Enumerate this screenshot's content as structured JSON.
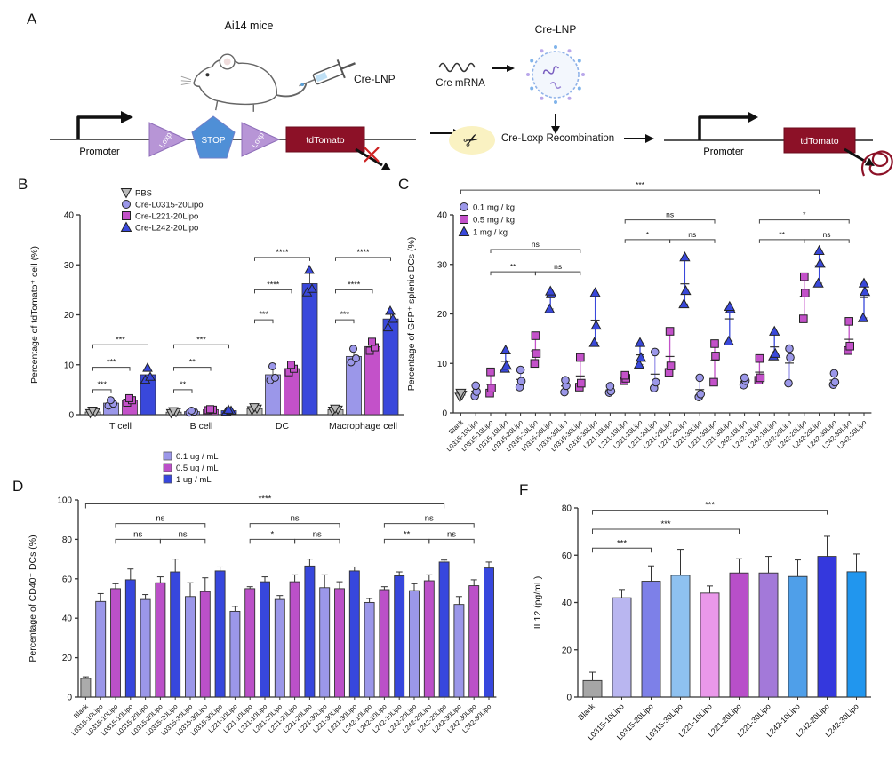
{
  "panels": {
    "a": "A",
    "b": "B",
    "c": "C",
    "d": "D",
    "f": "F"
  },
  "panel_a": {
    "mice_label": "Ai14 mice",
    "injection_label": "Cre-LNP",
    "mrna_label": "Cre mRNA",
    "lnp_label": "Cre-LNP",
    "recombination_label": "Cre-Loxp Recombination",
    "construct_before": {
      "promoter": "Promoter",
      "loxp1": "Loxp",
      "stop": "STOP",
      "loxp2": "Loxp",
      "gene": "tdTomato"
    },
    "construct_after": {
      "promoter": "Promoter",
      "gene": "tdTomato"
    },
    "colors": {
      "loxp": "#b795d6",
      "stop": "#4f8fd6",
      "gene": "#8c1127"
    }
  },
  "chart_data": [
    {
      "panel": "B",
      "type": "scatter-bar",
      "ylabel": "Percentage of tdTomato⁺ cell (%)",
      "ylim": [
        0,
        40
      ],
      "yticks": [
        0,
        10,
        20,
        30,
        40
      ],
      "categories": [
        "T cell",
        "B cell",
        "DC",
        "Macrophage cell"
      ],
      "series": [
        {
          "name": "PBS",
          "marker": "triangle-down",
          "color": "#b9b9b9",
          "points": [
            [
              0.3,
              0.5,
              0.8
            ],
            [
              0.3,
              0.5,
              0.7
            ],
            [
              0.9,
              1.2,
              1.5
            ],
            [
              0.8,
              1.0,
              1.2
            ]
          ]
        },
        {
          "name": "Cre-L0315-20Lipo",
          "marker": "circle",
          "color": "#9b97e9",
          "points": [
            [
              1.8,
              2.2,
              2.9
            ],
            [
              0.4,
              0.6,
              0.8
            ],
            [
              6.9,
              7.4,
              9.7
            ],
            [
              10.5,
              11.3,
              13.2
            ]
          ]
        },
        {
          "name": "Cre-L221-20Lipo",
          "marker": "square",
          "color": "#c351c9",
          "points": [
            [
              2.4,
              2.9,
              3.3
            ],
            [
              0.9,
              1.0,
              1.1
            ],
            [
              8.5,
              9.2,
              10.0
            ],
            [
              12.8,
              13.5,
              14.6
            ]
          ]
        },
        {
          "name": "Cre-L242-20Lipo",
          "marker": "triangle",
          "color": "#3948db",
          "points": [
            [
              7.0,
              7.6,
              9.4
            ],
            [
              0.6,
              0.8,
              1.0
            ],
            [
              24.5,
              25.2,
              29.0
            ],
            [
              17.5,
              19.2,
              20.8
            ]
          ]
        }
      ],
      "significance": [
        {
          "category": 0,
          "s1": 0,
          "s2": 1,
          "y": 5,
          "label": "***"
        },
        {
          "category": 0,
          "s1": 0,
          "s2": 2,
          "y": 9.5,
          "label": "***"
        },
        {
          "category": 0,
          "s1": 0,
          "s2": 3,
          "y": 14,
          "label": "***"
        },
        {
          "category": 1,
          "s1": 0,
          "s2": 1,
          "y": 5,
          "label": "**"
        },
        {
          "category": 1,
          "s1": 0,
          "s2": 2,
          "y": 9.5,
          "label": "**"
        },
        {
          "category": 1,
          "s1": 0,
          "s2": 3,
          "y": 14,
          "label": "***"
        },
        {
          "category": 2,
          "s1": 0,
          "s2": 1,
          "y": 19,
          "label": "***"
        },
        {
          "category": 2,
          "s1": 0,
          "s2": 2,
          "y": 25,
          "label": "****"
        },
        {
          "category": 2,
          "s1": 0,
          "s2": 3,
          "y": 31.5,
          "label": "****"
        },
        {
          "category": 3,
          "s1": 0,
          "s2": 1,
          "y": 19,
          "label": "***"
        },
        {
          "category": 3,
          "s1": 0,
          "s2": 2,
          "y": 25,
          "label": "****"
        },
        {
          "category": 3,
          "s1": 0,
          "s2": 3,
          "y": 31.5,
          "label": "****"
        }
      ]
    },
    {
      "panel": "C",
      "type": "dose-scatter",
      "ylabel": "Percentage of GFP⁺ splenic DCs (%)",
      "ylim": [
        0,
        40
      ],
      "yticks": [
        0,
        10,
        20,
        30,
        40
      ],
      "legend": [
        {
          "label": "0.1 mg / kg",
          "marker": "circle"
        },
        {
          "label": "0.5 mg / kg",
          "marker": "square"
        },
        {
          "label": "1 mg / kg",
          "marker": "triangle"
        }
      ],
      "dose_colors": [
        "#9b97e9",
        "#c351c9",
        "#3948db"
      ],
      "blank_color": "#b9b9b9",
      "x_labels": [
        "Blank",
        "L0315-10Lipo",
        "L0315-10Lipo",
        "L0315-10Lipo",
        "L0315-20Lipo",
        "L0315-20Lipo",
        "L0315-20Lipo",
        "L0315-30Lipo",
        "L0315-30Lipo",
        "L0315-30Lipo",
        "L221-10Lipo",
        "L221-10Lipo",
        "L221-10Lipo",
        "L221-20Lipo",
        "L221-20Lipo",
        "L221-20Lipo",
        "L221-30Lipo",
        "L221-30Lipo",
        "L221-30Lipo",
        "L242-10Lipo",
        "L242-10Lipo",
        "L242-10Lipo",
        "L242-20Lipo",
        "L242-20Lipo",
        "L242-20Lipo",
        "L242-30Lipo",
        "L242-30Lipo",
        "L242-30Lipo"
      ],
      "points": [
        [
          3.2,
          3.6,
          4.0
        ],
        [
          3.4,
          4.3,
          5.5
        ],
        [
          4.0,
          5.0,
          8.3
        ],
        [
          9.0,
          9.6,
          12.7
        ],
        [
          5.2,
          6.4,
          8.7
        ],
        [
          10.0,
          12.0,
          15.6
        ],
        [
          21.0,
          24.2,
          24.6
        ],
        [
          4.2,
          5.5,
          6.6
        ],
        [
          5.2,
          6.0,
          11.2
        ],
        [
          14.2,
          17.7,
          24.3
        ],
        [
          4.1,
          4.4,
          5.4
        ],
        [
          6.5,
          7.0,
          7.6
        ],
        [
          9.8,
          11.2,
          14.2
        ],
        [
          5.0,
          6.2,
          12.3
        ],
        [
          8.2,
          9.5,
          16.5
        ],
        [
          22.0,
          24.7,
          31.5
        ],
        [
          3.2,
          3.8,
          7.1
        ],
        [
          6.2,
          11.5,
          14.0
        ],
        [
          14.5,
          21.0,
          21.5
        ],
        [
          5.6,
          6.5,
          7.1
        ],
        [
          6.6,
          7.1,
          11.0
        ],
        [
          11.5,
          12.0,
          16.5
        ],
        [
          6.0,
          11.2,
          13.0
        ],
        [
          19.0,
          24.2,
          27.5
        ],
        [
          26.2,
          30.2,
          32.8
        ],
        [
          5.7,
          6.2,
          8.0
        ],
        [
          12.6,
          13.5,
          18.5
        ],
        [
          19.2,
          24.5,
          26.2
        ]
      ],
      "significance": [
        {
          "i1": 0,
          "i2": 24,
          "y": 45,
          "label": "***"
        },
        {
          "i1": 2,
          "i2": 8,
          "y": 33,
          "label": "ns"
        },
        {
          "i1": 2,
          "i2": 5,
          "y": 28.5,
          "label": "**"
        },
        {
          "i1": 5,
          "i2": 8,
          "y": 28.5,
          "label": "ns"
        },
        {
          "i1": 11,
          "i2": 17,
          "y": 39,
          "label": "ns"
        },
        {
          "i1": 11,
          "i2": 14,
          "y": 35,
          "label": "*"
        },
        {
          "i1": 14,
          "i2": 17,
          "y": 35,
          "label": "ns"
        },
        {
          "i1": 20,
          "i2": 26,
          "y": 39,
          "label": "*"
        },
        {
          "i1": 20,
          "i2": 23,
          "y": 35,
          "label": "**"
        },
        {
          "i1": 23,
          "i2": 26,
          "y": 35,
          "label": "ns"
        }
      ]
    },
    {
      "panel": "D",
      "type": "bar",
      "ylabel": "Percentage of CD40⁺ DCs (%)",
      "ylim": [
        0,
        100
      ],
      "yticks": [
        0,
        20,
        40,
        60,
        80,
        100
      ],
      "legend": [
        {
          "label": "0.1 ug / mL"
        },
        {
          "label": "0.5 ug / mL"
        },
        {
          "label": "1 ug / mL"
        }
      ],
      "dose_colors": [
        "#9b97e9",
        "#bb50c8",
        "#3747dd"
      ],
      "blank_color": "#ababab",
      "x_labels": [
        "Blank",
        "L0315-10Lipo",
        "L0315-10Lipo",
        "L0315-10Lipo",
        "L0315-20Lipo",
        "L0315-20Lipo",
        "L0315-20Lipo",
        "L0315-30Lipo",
        "L0315-30Lipo",
        "L0315-30Lipo",
        "L221-10Lipo",
        "L221-10Lipo",
        "L221-10Lipo",
        "L221-20Lipo",
        "L221-20Lipo",
        "L221-20Lipo",
        "L221-30Lipo",
        "L221-30Lipo",
        "L221-30Lipo",
        "L242-10Lipo",
        "L242-10Lipo",
        "L242-10Lipo",
        "L242-20Lipo",
        "L242-20Lipo",
        "L242-20Lipo",
        "L242-30Lipo",
        "L242-30Lipo",
        "L242-30Lipo"
      ],
      "values": [
        9.5,
        48.5,
        55,
        59.5,
        49.5,
        58,
        63.5,
        51,
        53.5,
        64,
        43.5,
        55,
        58.5,
        49.5,
        58.5,
        66.5,
        55.5,
        55,
        64,
        48,
        54.5,
        61.5,
        54,
        59,
        68.5,
        47,
        56.5,
        65.5
      ],
      "errors": [
        0.8,
        4,
        2.5,
        5.5,
        2.5,
        3,
        6.5,
        7,
        7,
        2,
        2.5,
        1,
        2.5,
        2,
        3.5,
        3.5,
        6.5,
        3.5,
        2,
        2,
        1.5,
        2,
        3.5,
        3,
        1,
        4,
        3,
        3
      ],
      "significance": [
        {
          "i1": 0,
          "i2": 24,
          "y": 98,
          "label": "****"
        },
        {
          "i1": 2,
          "i2": 8,
          "y": 88,
          "label": "ns"
        },
        {
          "i1": 2,
          "i2": 5,
          "y": 80,
          "label": "ns"
        },
        {
          "i1": 5,
          "i2": 8,
          "y": 80,
          "label": "ns"
        },
        {
          "i1": 11,
          "i2": 17,
          "y": 88,
          "label": "ns"
        },
        {
          "i1": 11,
          "i2": 14,
          "y": 80,
          "label": "*"
        },
        {
          "i1": 14,
          "i2": 17,
          "y": 80,
          "label": "ns"
        },
        {
          "i1": 20,
          "i2": 26,
          "y": 88,
          "label": "ns"
        },
        {
          "i1": 20,
          "i2": 23,
          "y": 80,
          "label": "**"
        },
        {
          "i1": 23,
          "i2": 26,
          "y": 80,
          "label": "ns"
        }
      ]
    },
    {
      "panel": "F",
      "type": "bar",
      "ylabel": "IL12 (pg/mL)",
      "ylim": [
        0,
        80
      ],
      "yticks": [
        0,
        20,
        40,
        60,
        80
      ],
      "x_labels": [
        "Blank",
        "L0315-10Lipo",
        "L0315-20Lipo",
        "L0315-30Lipo",
        "L221-10Lipo",
        "L221-20Lipo",
        "L221-30Lipo",
        "L242-10Lipo",
        "L242-20Lipo",
        "L242-30Lipo"
      ],
      "values": [
        7,
        42,
        49,
        51.5,
        44,
        52.5,
        52.5,
        51,
        59.5,
        53
      ],
      "errors": [
        3.5,
        3.5,
        6.5,
        11,
        3,
        6,
        7,
        7,
        8.5,
        7.5
      ],
      "bar_colors": [
        "#a6a6a6",
        "#b9b6f0",
        "#7d80e8",
        "#8ec1f0",
        "#ea98ea",
        "#b84fc9",
        "#a379d9",
        "#4f9fe9",
        "#3438dd",
        "#2196ee"
      ],
      "significance": [
        {
          "i1": 0,
          "i2": 2,
          "y": 63,
          "label": "***"
        },
        {
          "i1": 0,
          "i2": 5,
          "y": 71,
          "label": "***"
        },
        {
          "i1": 0,
          "i2": 8,
          "y": 79,
          "label": "***"
        }
      ]
    }
  ]
}
